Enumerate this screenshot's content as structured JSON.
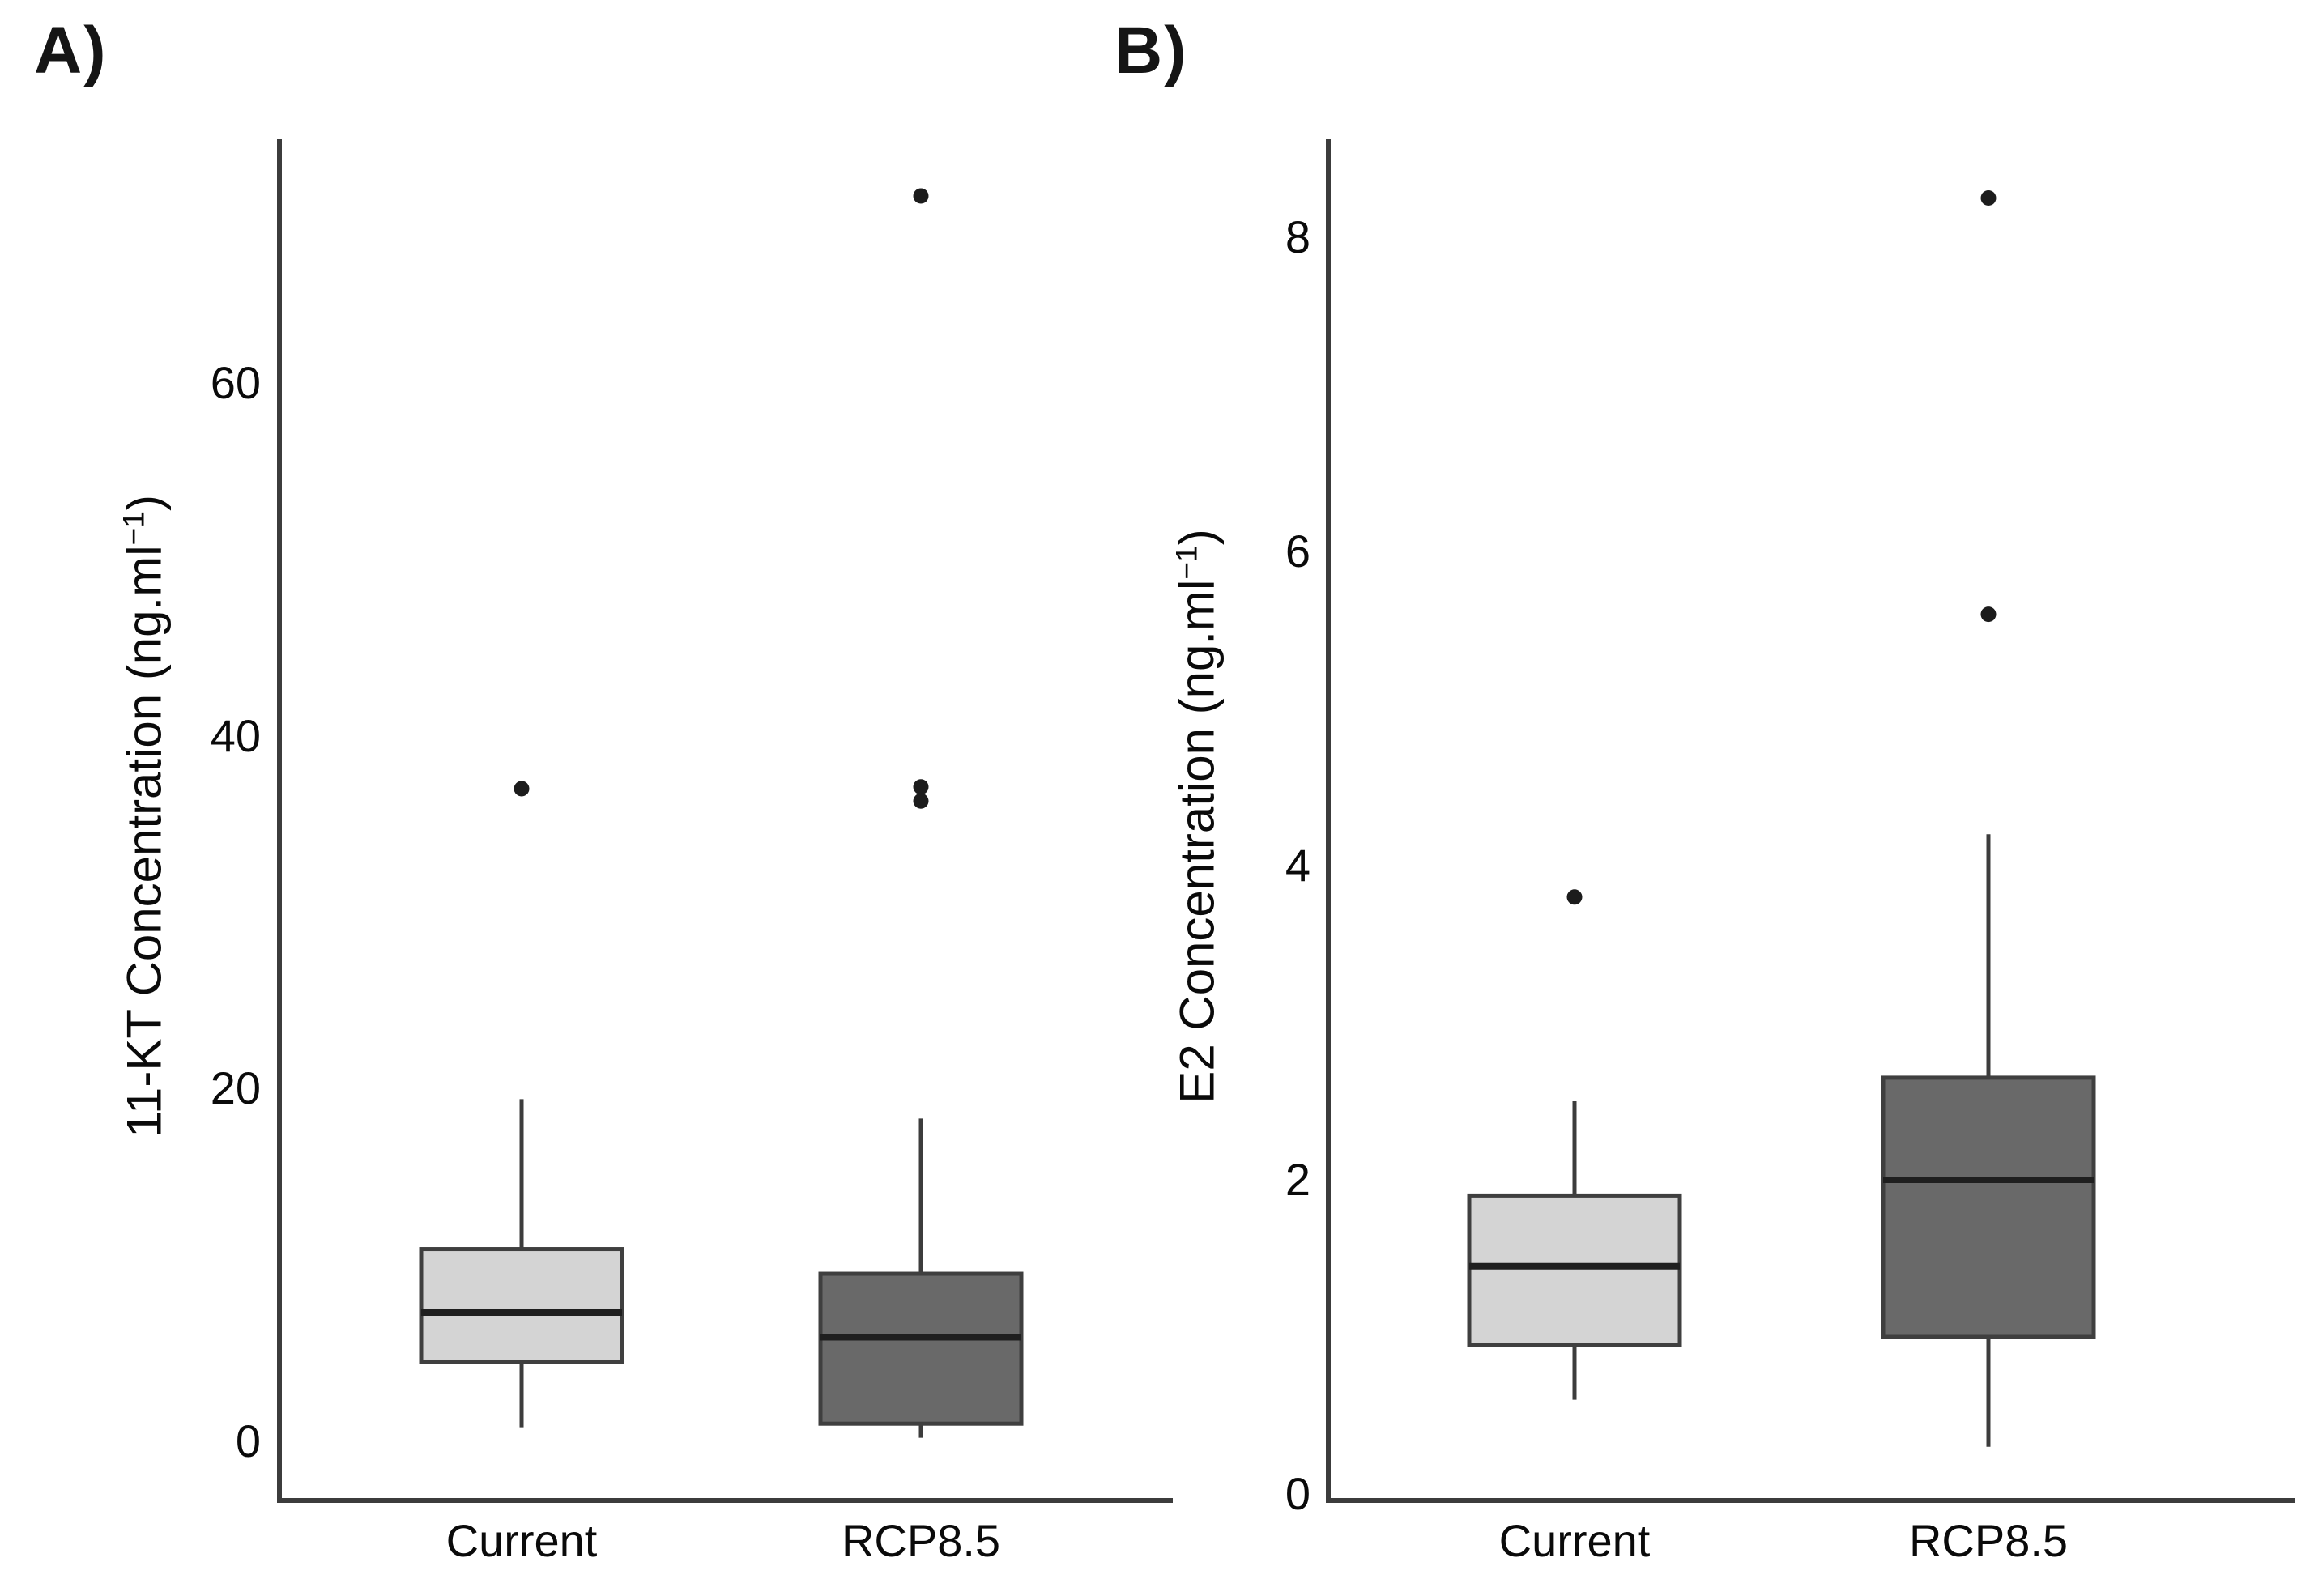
{
  "figure": {
    "background": "#ffffff",
    "axis_color": "#3c3c3c",
    "outlier_color": "#1c1c1c",
    "median_color": "#1f1f1f"
  },
  "chart_data": [
    {
      "type": "boxplot",
      "panel_label": "A)",
      "ylabel": "11-KT Concentration (ng.ml−1)",
      "ylabel_prefix": "11-KT Concentration (ng.ml",
      "ylabel_sup": "−1",
      "ylabel_suffix": ")",
      "categories": [
        "Current",
        "RCP8.5"
      ],
      "yticks": [
        0,
        20,
        40,
        60
      ],
      "ylim": [
        -2,
        73
      ],
      "grid": false,
      "legend": "none",
      "series": [
        {
          "name": "Current",
          "fill": "#d4d4d4",
          "whisker_low": 0.8,
          "q1": 4.5,
          "median": 7.3,
          "q3": 10.9,
          "whisker_high": 19.4,
          "outliers": [
            37.0
          ]
        },
        {
          "name": "RCP8.5",
          "fill": "#696969",
          "whisker_low": 0.2,
          "q1": 1.0,
          "median": 5.9,
          "q3": 9.5,
          "whisker_high": 18.3,
          "outliers": [
            36.3,
            37.1,
            70.6
          ]
        }
      ]
    },
    {
      "type": "boxplot",
      "panel_label": "B)",
      "ylabel": "E2 Concentration (ng.ml−1)",
      "ylabel_prefix": "E2 Concentration (ng.ml",
      "ylabel_sup": "−1",
      "ylabel_suffix": ")",
      "categories": [
        "Current",
        "RCP8.5"
      ],
      "yticks": [
        0,
        2,
        4,
        6,
        8
      ],
      "ylim": [
        0,
        8.6
      ],
      "grid": false,
      "legend": "none",
      "series": [
        {
          "name": "Current",
          "fill": "#d4d4d4",
          "whisker_low": 0.6,
          "q1": 0.95,
          "median": 1.45,
          "q3": 1.9,
          "whisker_high": 2.5,
          "outliers": [
            3.8
          ]
        },
        {
          "name": "RCP8.5",
          "fill": "#696969",
          "whisker_low": 0.3,
          "q1": 1.0,
          "median": 2.0,
          "q3": 2.65,
          "whisker_high": 4.2,
          "outliers": [
            5.6,
            8.25
          ]
        }
      ]
    }
  ]
}
